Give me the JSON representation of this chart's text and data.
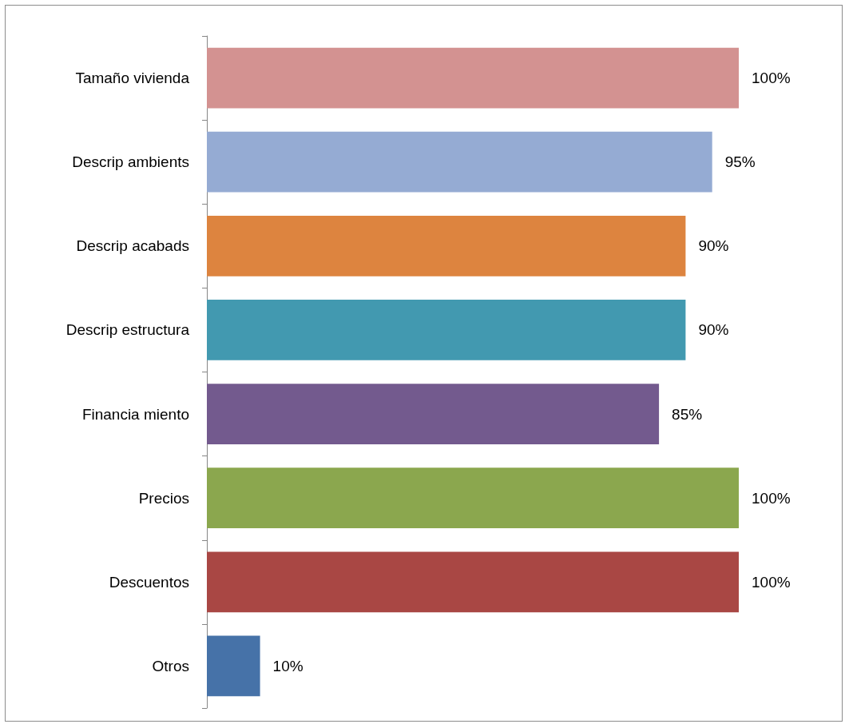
{
  "chart_data": {
    "type": "bar",
    "orientation": "horizontal",
    "categories": [
      "Tamaño vivienda",
      "Descrip ambients",
      "Descrip acabads",
      "Descrip estructura",
      "Financia miento",
      "Precios",
      "Descuentos",
      "Otros"
    ],
    "values": [
      100,
      95,
      90,
      90,
      85,
      100,
      100,
      10
    ],
    "colors": [
      "#d39291",
      "#95abd3",
      "#dd843f",
      "#4299b0",
      "#735a8e",
      "#8ba74e",
      "#a94744",
      "#4672a8"
    ],
    "value_labels": [
      "100%",
      "95%",
      "90%",
      "90%",
      "85%",
      "100%",
      "100%",
      "10%"
    ]
  }
}
